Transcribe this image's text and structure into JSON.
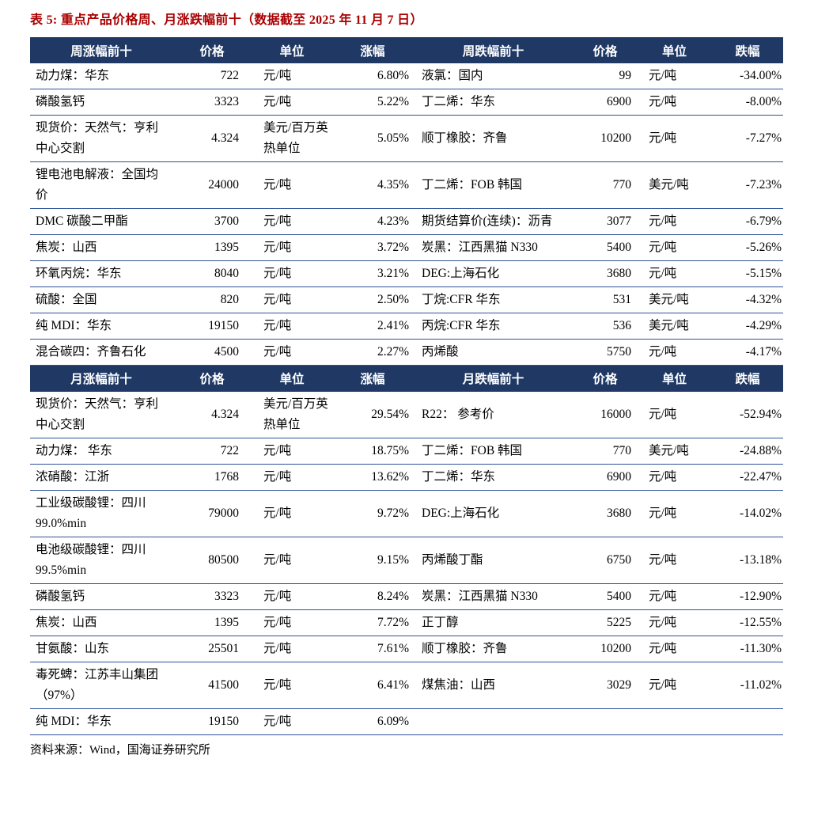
{
  "page": {
    "title": "表 5: 重点产品价格周、月涨跌幅前十（数据截至 2025 年 11 月 7 日）",
    "source": "资料来源：Wind，国海证券研究所"
  },
  "colors": {
    "title_color": "#AA0000",
    "header_bg": "#1F3864",
    "header_text": "#FFFFFF",
    "border": "#2E5395",
    "body_text": "#000000"
  },
  "sections": [
    {
      "id": "weekly",
      "headers": [
        "周涨幅前十",
        "价格",
        "单位",
        "涨幅",
        "周跌幅前十",
        "价格",
        "单位",
        "跌幅"
      ],
      "rows": [
        [
          "动力煤：华东",
          "722",
          "元/吨",
          "6.80%",
          "液氯：国内",
          "99",
          "元/吨",
          "-34.00%"
        ],
        [
          "磷酸氢钙",
          "3323",
          "元/吨",
          "5.22%",
          "丁二烯：华东",
          "6900",
          "元/吨",
          "-8.00%"
        ],
        [
          "现货价：天然气：亨利中心交割",
          "4.324",
          "美元/百万英热单位",
          "5.05%",
          "顺丁橡胶：齐鲁",
          "10200",
          "元/吨",
          "-7.27%"
        ],
        [
          "锂电池电解液：全国均价",
          "24000",
          "元/吨",
          "4.35%",
          "丁二烯：FOB 韩国",
          "770",
          "美元/吨",
          "-7.23%"
        ],
        [
          "DMC 碳酸二甲酯",
          "3700",
          "元/吨",
          "4.23%",
          "期货结算价(连续)：沥青",
          "3077",
          "元/吨",
          "-6.79%"
        ],
        [
          "焦炭：山西",
          "1395",
          "元/吨",
          "3.72%",
          "炭黑：江西黑猫 N330",
          "5400",
          "元/吨",
          "-5.26%"
        ],
        [
          "环氧丙烷：华东",
          "8040",
          "元/吨",
          "3.21%",
          "DEG:上海石化",
          "3680",
          "元/吨",
          "-5.15%"
        ],
        [
          "硫酸：全国",
          "820",
          "元/吨",
          "2.50%",
          "丁烷:CFR 华东",
          "531",
          "美元/吨",
          "-4.32%"
        ],
        [
          "纯 MDI：华东",
          "19150",
          "元/吨",
          "2.41%",
          "丙烷:CFR 华东",
          "536",
          "美元/吨",
          "-4.29%"
        ],
        [
          "混合碳四：齐鲁石化",
          "4500",
          "元/吨",
          "2.27%",
          "丙烯酸",
          "5750",
          "元/吨",
          "-4.17%"
        ]
      ]
    },
    {
      "id": "monthly",
      "headers": [
        "月涨幅前十",
        "价格",
        "单位",
        "涨幅",
        "月跌幅前十",
        "价格",
        "单位",
        "跌幅"
      ],
      "rows": [
        [
          "现货价：天然气：亨利中心交割",
          "4.324",
          "美元/百万英热单位",
          "29.54%",
          "R22： 参考价",
          "16000",
          "元/吨",
          "-52.94%"
        ],
        [
          "动力煤： 华东",
          "722",
          "元/吨",
          "18.75%",
          "丁二烯：FOB 韩国",
          "770",
          "美元/吨",
          "-24.88%"
        ],
        [
          "浓硝酸：江浙",
          "1768",
          "元/吨",
          "13.62%",
          "丁二烯：华东",
          "6900",
          "元/吨",
          "-22.47%"
        ],
        [
          "工业级碳酸锂：四川 99.0%min",
          "79000",
          "元/吨",
          "9.72%",
          "DEG:上海石化",
          "3680",
          "元/吨",
          "-14.02%"
        ],
        [
          "电池级碳酸锂：四川 99.5%min",
          "80500",
          "元/吨",
          "9.15%",
          "丙烯酸丁酯",
          "6750",
          "元/吨",
          "-13.18%"
        ],
        [
          "磷酸氢钙",
          "3323",
          "元/吨",
          "8.24%",
          "炭黑：江西黑猫 N330",
          "5400",
          "元/吨",
          "-12.90%"
        ],
        [
          "焦炭：山西",
          "1395",
          "元/吨",
          "7.72%",
          "正丁醇",
          "5225",
          "元/吨",
          "-12.55%"
        ],
        [
          "甘氨酸：山东",
          "25501",
          "元/吨",
          "7.61%",
          "顺丁橡胶：齐鲁",
          "10200",
          "元/吨",
          "-11.30%"
        ],
        [
          "毒死蜱：江苏丰山集团（97%）",
          "41500",
          "元/吨",
          "6.41%",
          "煤焦油：山西",
          "3029",
          "元/吨",
          "-11.02%"
        ],
        [
          "纯 MDI：华东",
          "19150",
          "元/吨",
          "6.09%",
          "",
          "",
          "",
          ""
        ]
      ]
    }
  ]
}
